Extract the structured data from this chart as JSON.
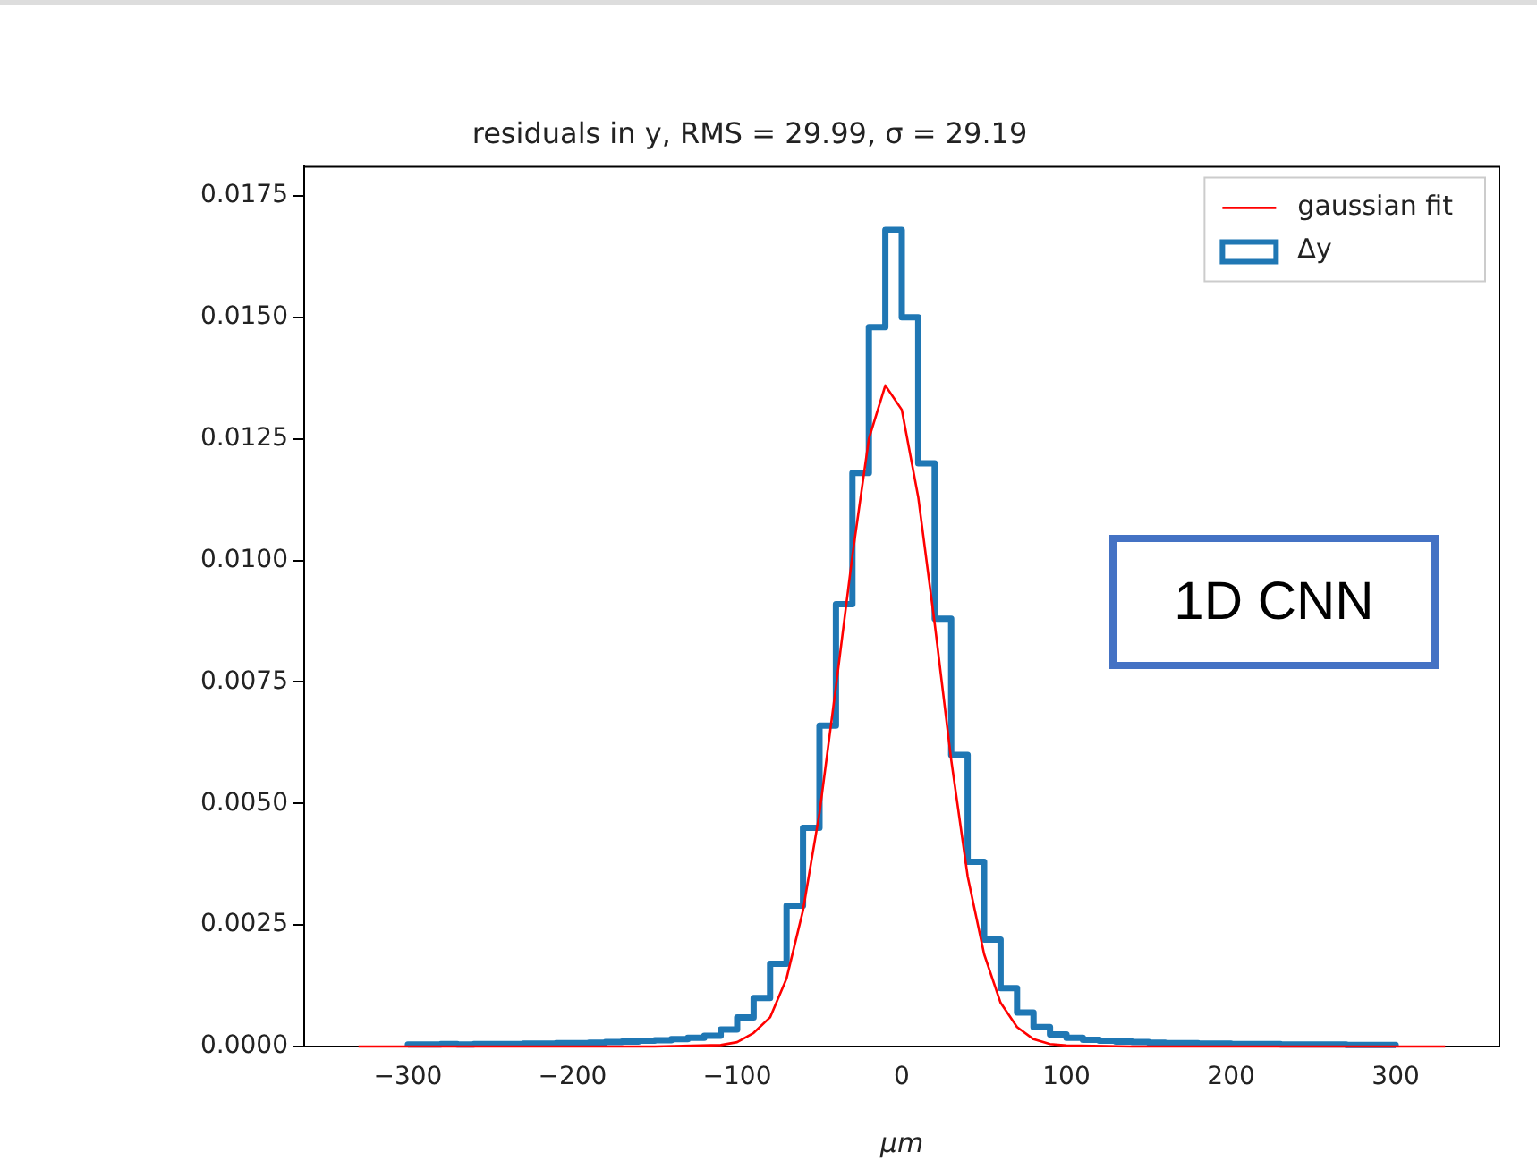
{
  "chart_data": {
    "type": "histogram",
    "title": "residuals in y, RMS = 29.99, σ = 29.19",
    "xlabel": "μm",
    "annotations": [
      "1D CNN"
    ],
    "legend": "top right",
    "grid": false,
    "xlim": [
      -363,
      363
    ],
    "xticks": [
      {
        "value": -300,
        "label": "−300"
      },
      {
        "value": -200,
        "label": "−200"
      },
      {
        "value": -100,
        "label": "−100"
      },
      0,
      100,
      200,
      300
    ],
    "ylim": [
      0,
      0.0181
    ],
    "yticks": [
      {
        "value": 0,
        "label": "0.0000"
      },
      {
        "value": 0.0025,
        "label": "0.0025"
      },
      {
        "value": 0.005,
        "label": "0.0050"
      },
      {
        "value": 0.0075,
        "label": "0.0075"
      },
      {
        "value": 0.01,
        "label": "0.0100"
      },
      {
        "value": 0.0125,
        "label": "0.0125"
      },
      {
        "value": 0.015,
        "label": "0.0150"
      },
      {
        "value": 0.0175,
        "label": "0.0175"
      }
    ],
    "bins": [
      -300,
      -290,
      -280,
      -270,
      -260,
      -250,
      -240,
      -230,
      -220,
      -210,
      -200,
      -190,
      -180,
      -170,
      -160,
      -150,
      -140,
      -130,
      -120,
      -110,
      -100,
      -90,
      -80,
      -70,
      -60,
      -50,
      -40,
      -30,
      -20,
      -10,
      0,
      10,
      20,
      30,
      40,
      50,
      60,
      70,
      80,
      90,
      100,
      110,
      120,
      130,
      140,
      150,
      160,
      170,
      180,
      190,
      200,
      210,
      220,
      230,
      240,
      250,
      260,
      270,
      280,
      290,
      300
    ],
    "series": [
      {
        "name": "gaussian fit",
        "type": "line",
        "color": "#ff0000",
        "x": [
          -330,
          -150,
          -110,
          -100,
          -90,
          -80,
          -70,
          -60,
          -50,
          -40,
          -30,
          -20,
          -10,
          0,
          10,
          20,
          30,
          40,
          50,
          60,
          70,
          80,
          90,
          100,
          140,
          330
        ],
        "values": [
          0,
          0,
          3e-05,
          9e-05,
          0.00028,
          0.0006,
          0.0014,
          0.0028,
          0.0048,
          0.0074,
          0.0101,
          0.0125,
          0.0136,
          0.0131,
          0.0113,
          0.0087,
          0.0059,
          0.0035,
          0.0019,
          0.0009,
          0.0004,
          0.00015,
          5e-05,
          2e-05,
          0,
          0
        ]
      },
      {
        "name": "Δy",
        "color": "#1f77b4",
        "values": [
          4e-05,
          4e-05,
          5e-05,
          4e-05,
          5e-05,
          5e-05,
          5e-05,
          6e-05,
          6e-05,
          7e-05,
          7e-05,
          8e-05,
          9e-05,
          0.0001,
          0.00012,
          0.00013,
          0.00015,
          0.00018,
          0.00022,
          0.00035,
          0.0006,
          0.001,
          0.0017,
          0.0029,
          0.0045,
          0.0066,
          0.0091,
          0.0118,
          0.0148,
          0.0168,
          0.015,
          0.012,
          0.0088,
          0.006,
          0.0038,
          0.0022,
          0.0012,
          0.0007,
          0.0004,
          0.00025,
          0.00018,
          0.00014,
          0.00012,
          0.0001,
          9e-05,
          8e-05,
          7e-05,
          7e-05,
          6e-05,
          6e-05,
          5e-05,
          5e-05,
          5e-05,
          4e-05,
          4e-05,
          4e-05,
          4e-05,
          3e-05,
          3e-05,
          3e-05
        ]
      }
    ]
  }
}
